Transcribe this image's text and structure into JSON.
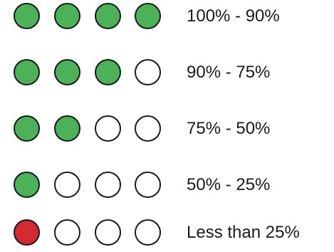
{
  "colors": {
    "filled_green": "#4cb25a",
    "filled_red": "#d62a33",
    "empty": "#ffffff",
    "outline": "#1a1a1a"
  },
  "rows": [
    {
      "label": "100% - 90%",
      "filled": 4,
      "fill_color": "filled_green"
    },
    {
      "label": "90% - 75%",
      "filled": 3,
      "fill_color": "filled_green"
    },
    {
      "label": "75% - 50%",
      "filled": 2,
      "fill_color": "filled_green"
    },
    {
      "label": "50% - 25%",
      "filled": 1,
      "fill_color": "filled_green"
    },
    {
      "label": "Less than 25%",
      "filled": 1,
      "fill_color": "filled_red"
    }
  ]
}
